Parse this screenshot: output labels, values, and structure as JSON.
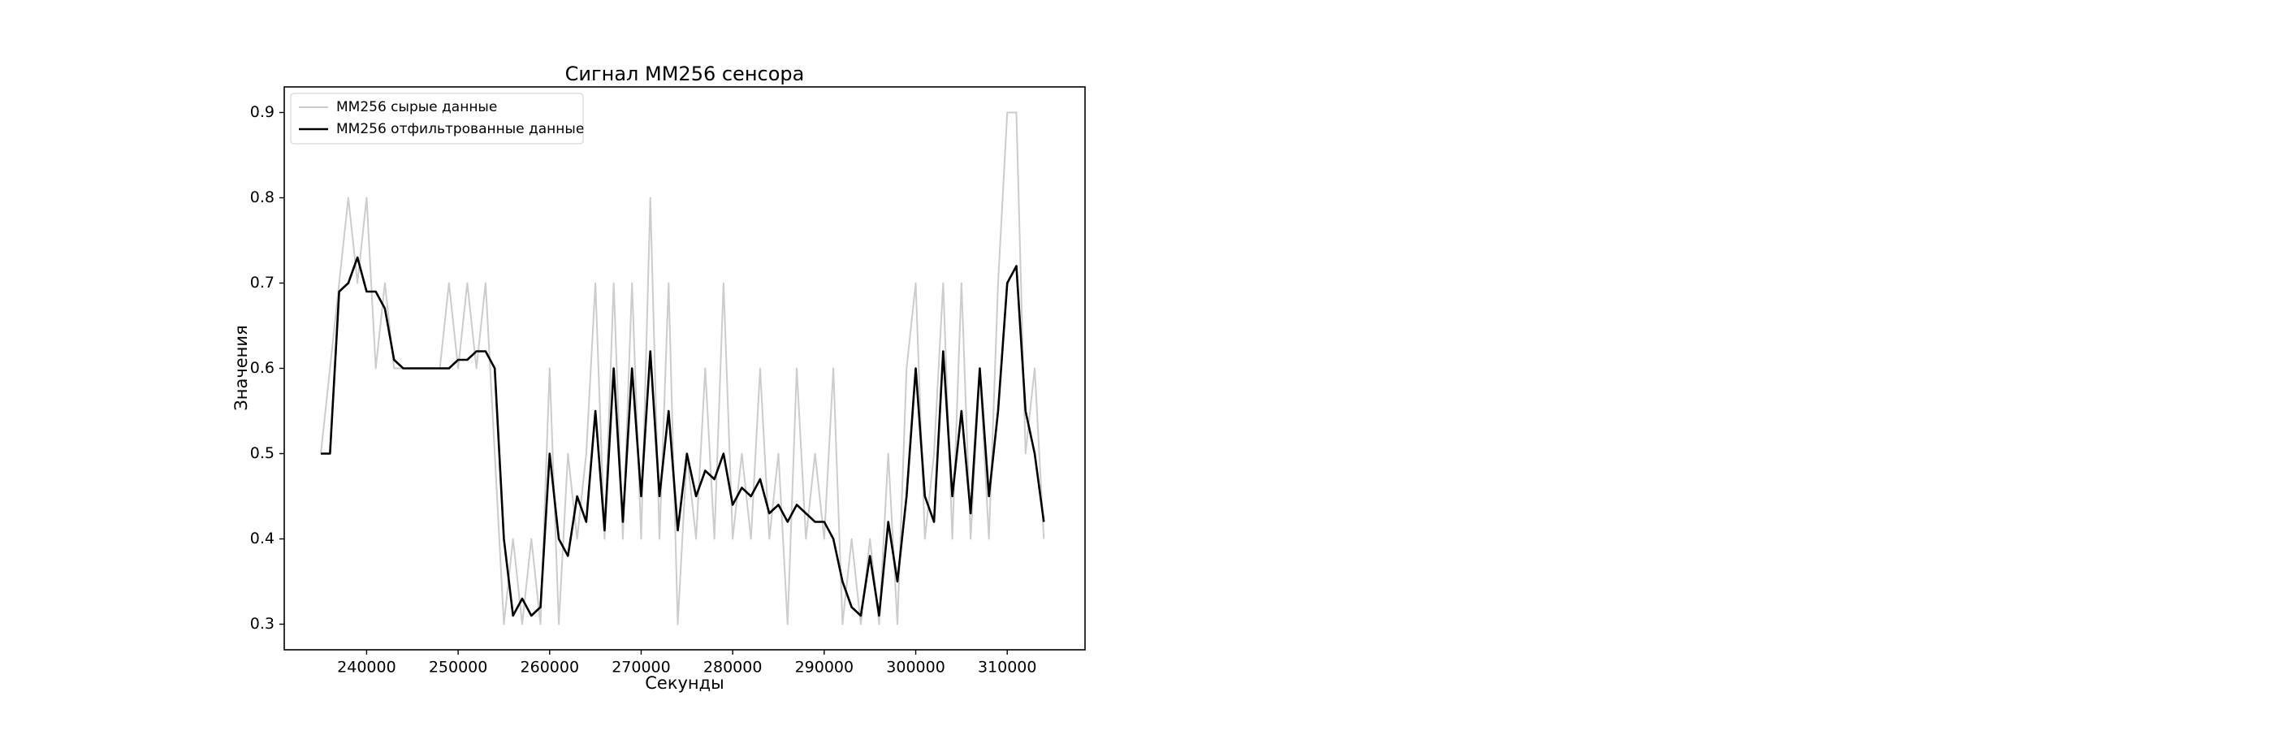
{
  "chart_data": {
    "type": "line",
    "title": "Сигнал MM256 сенсора",
    "x_label": "Секунды",
    "y_label": "Значения",
    "x": [
      235000,
      236000,
      237000,
      238000,
      239000,
      240000,
      241000,
      242000,
      243000,
      244000,
      245000,
      246000,
      247000,
      248000,
      249000,
      250000,
      251000,
      252000,
      253000,
      254000,
      255000,
      256000,
      257000,
      258000,
      259000,
      260000,
      261000,
      262000,
      263000,
      264000,
      265000,
      266000,
      267000,
      268000,
      269000,
      270000,
      271000,
      272000,
      273000,
      274000,
      275000,
      276000,
      277000,
      278000,
      279000,
      280000,
      281000,
      282000,
      283000,
      284000,
      285000,
      286000,
      287000,
      288000,
      289000,
      290000,
      291000,
      292000,
      293000,
      294000,
      295000,
      296000,
      297000,
      298000,
      299000,
      300000,
      301000,
      302000,
      303000,
      304000,
      305000,
      306000,
      307000,
      308000,
      309000,
      310000,
      311000,
      312000,
      313000,
      314000
    ],
    "series": [
      {
        "name": "MM256 сырые данные",
        "color": "#cccccc",
        "values": [
          0.5,
          0.6,
          0.7,
          0.8,
          0.7,
          0.8,
          0.6,
          0.7,
          0.6,
          0.6,
          0.6,
          0.6,
          0.6,
          0.6,
          0.7,
          0.6,
          0.7,
          0.6,
          0.7,
          0.5,
          0.3,
          0.4,
          0.3,
          0.4,
          0.3,
          0.6,
          0.3,
          0.5,
          0.4,
          0.5,
          0.7,
          0.4,
          0.7,
          0.4,
          0.7,
          0.4,
          0.8,
          0.4,
          0.7,
          0.3,
          0.5,
          0.4,
          0.6,
          0.4,
          0.7,
          0.4,
          0.5,
          0.4,
          0.6,
          0.4,
          0.5,
          0.3,
          0.6,
          0.4,
          0.5,
          0.4,
          0.6,
          0.3,
          0.4,
          0.3,
          0.4,
          0.3,
          0.5,
          0.3,
          0.6,
          0.7,
          0.4,
          0.5,
          0.7,
          0.4,
          0.7,
          0.4,
          0.6,
          0.4,
          0.7,
          0.9,
          0.9,
          0.5,
          0.6,
          0.4
        ]
      },
      {
        "name": "MM256 отфильтрованные данные",
        "color": "#000000",
        "values": [
          0.5,
          0.5,
          0.69,
          0.7,
          0.73,
          0.69,
          0.69,
          0.67,
          0.61,
          0.6,
          0.6,
          0.6,
          0.6,
          0.6,
          0.6,
          0.61,
          0.61,
          0.62,
          0.62,
          0.6,
          0.4,
          0.31,
          0.33,
          0.31,
          0.32,
          0.5,
          0.4,
          0.38,
          0.45,
          0.42,
          0.55,
          0.41,
          0.6,
          0.42,
          0.6,
          0.45,
          0.62,
          0.45,
          0.55,
          0.41,
          0.5,
          0.45,
          0.48,
          0.47,
          0.5,
          0.44,
          0.46,
          0.45,
          0.47,
          0.43,
          0.44,
          0.42,
          0.44,
          0.43,
          0.42,
          0.42,
          0.4,
          0.35,
          0.32,
          0.31,
          0.38,
          0.31,
          0.42,
          0.35,
          0.45,
          0.6,
          0.45,
          0.42,
          0.62,
          0.45,
          0.55,
          0.43,
          0.6,
          0.45,
          0.55,
          0.7,
          0.72,
          0.55,
          0.5,
          0.42
        ]
      }
    ],
    "xlim": [
      231000,
      318500
    ],
    "xticks": [
      240000,
      250000,
      260000,
      270000,
      280000,
      290000,
      300000,
      310000
    ],
    "ylim": [
      0.27,
      0.93
    ],
    "yticks": [
      0.3,
      0.4,
      0.5,
      0.6,
      0.7,
      0.8,
      0.9
    ],
    "legend": "upper left"
  }
}
